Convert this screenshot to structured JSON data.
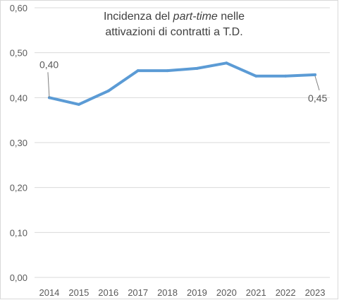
{
  "chart_data": {
    "type": "line",
    "title_parts": {
      "before": "Incidenza del ",
      "italic": "part-time",
      "after": " nelle",
      "line2": "attivazioni di contratti a T.D."
    },
    "title": "Incidenza del part-time nelle attivazioni di contratti a T.D.",
    "xlabel": "",
    "ylabel": "",
    "categories": [
      "2014",
      "2015",
      "2016",
      "2017",
      "2018",
      "2019",
      "2020",
      "2021",
      "2022",
      "2023"
    ],
    "series": [
      {
        "color": "#5b9bd5",
        "values": [
          0.4,
          0.385,
          0.415,
          0.46,
          0.46,
          0.465,
          0.477,
          0.448,
          0.448,
          0.451
        ]
      }
    ],
    "ylim": [
      0,
      0.6
    ],
    "y_ticks": [
      0.0,
      0.1,
      0.2,
      0.3,
      0.4,
      0.5,
      0.6
    ],
    "y_tick_labels": [
      "0,00",
      "0,10",
      "0,20",
      "0,30",
      "0,40",
      "0,50",
      "0,60"
    ],
    "grid": true,
    "annotations": [
      {
        "category": "2014",
        "label": "0,40"
      },
      {
        "category": "2023",
        "label": "0,45"
      }
    ],
    "colors": {
      "line": "#5b9bd5",
      "grid": "#d9d9d9",
      "text": "#595959",
      "callout": "#7f7f7f"
    }
  }
}
